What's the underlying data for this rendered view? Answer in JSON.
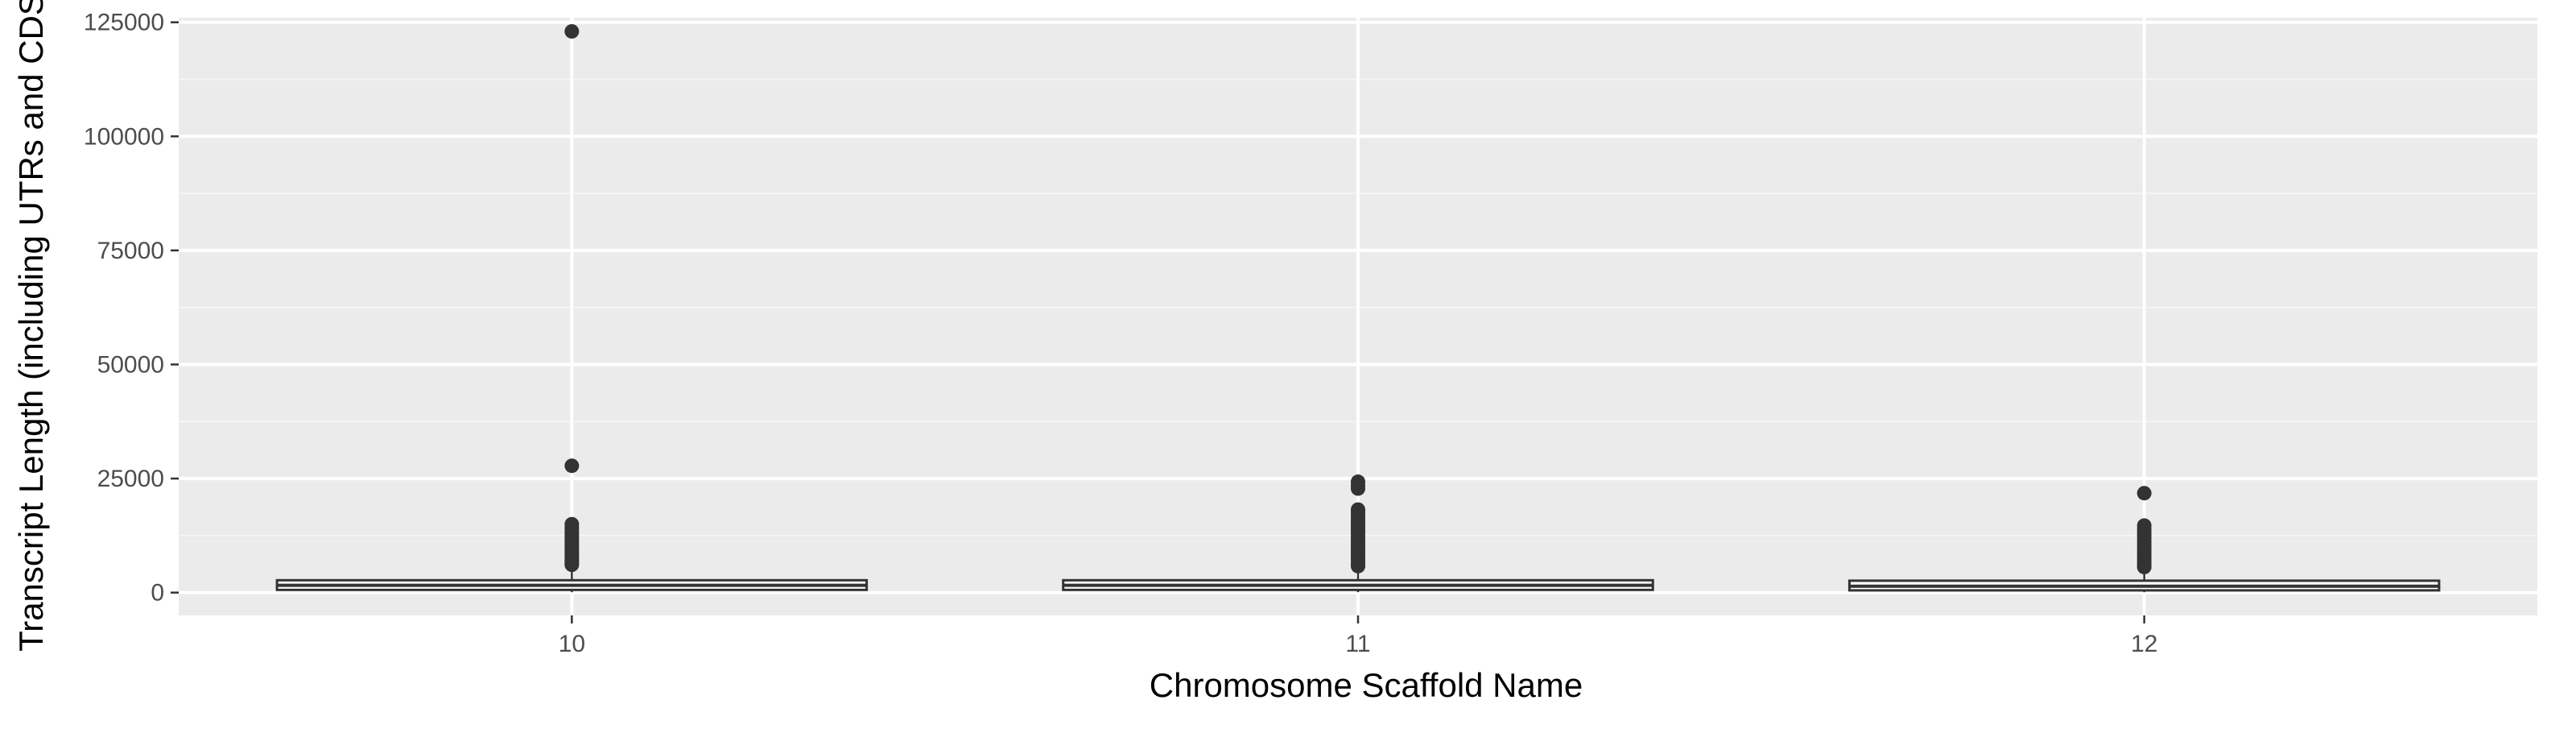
{
  "chart_data": {
    "type": "boxplot",
    "title": "",
    "xlabel": "Chromosome Scaffold Name",
    "ylabel": "Transcript Length (including UTRs and CDS)",
    "ylim": [
      -5000,
      126000
    ],
    "yticks": [
      0,
      25000,
      50000,
      75000,
      100000,
      125000
    ],
    "ytick_labels": [
      "0",
      "25000",
      "50000",
      "75000",
      "100000",
      "125000"
    ],
    "grid": true,
    "legend": "none",
    "categories": [
      "10",
      "11",
      "12"
    ],
    "boxes": [
      {
        "category": "10",
        "whisker_low": 100,
        "q1": 600,
        "median": 1600,
        "q3": 2700,
        "whisker_high": 5700,
        "outliers": [
          123000,
          27800,
          15000,
          14200,
          13600,
          13000,
          12400,
          11800,
          11200,
          10600,
          10100,
          9600,
          9100,
          8600,
          8100,
          7700,
          7300,
          6900,
          6500,
          6100
        ]
      },
      {
        "category": "11",
        "whisker_low": 100,
        "q1": 600,
        "median": 1600,
        "q3": 2700,
        "whisker_high": 5400,
        "outliers": [
          24300,
          23500,
          22800,
          18200,
          17600,
          17000,
          16400,
          15800,
          15200,
          14600,
          14000,
          13400,
          12800,
          12200,
          11600,
          11000,
          10400,
          9800,
          9200,
          8600,
          8000,
          7400,
          6800,
          6200,
          5800
        ]
      },
      {
        "category": "12",
        "whisker_low": 100,
        "q1": 600,
        "median": 1400,
        "q3": 2500,
        "whisker_high": 5300,
        "outliers": [
          21800,
          14700,
          14000,
          13300,
          12600,
          11900,
          11200,
          10500,
          9800,
          9100,
          8400,
          7800,
          7200,
          6600,
          6000,
          5600
        ]
      }
    ],
    "colors": {
      "panel_background": "#ebebeb",
      "grid_major": "#ffffff",
      "grid_minor": "#f5f5f5",
      "box_fill": "#ffffff",
      "box_stroke": "#333333",
      "outlier": "#333333",
      "tick_text": "#4d4d4d",
      "axis_title": "#000000"
    }
  }
}
